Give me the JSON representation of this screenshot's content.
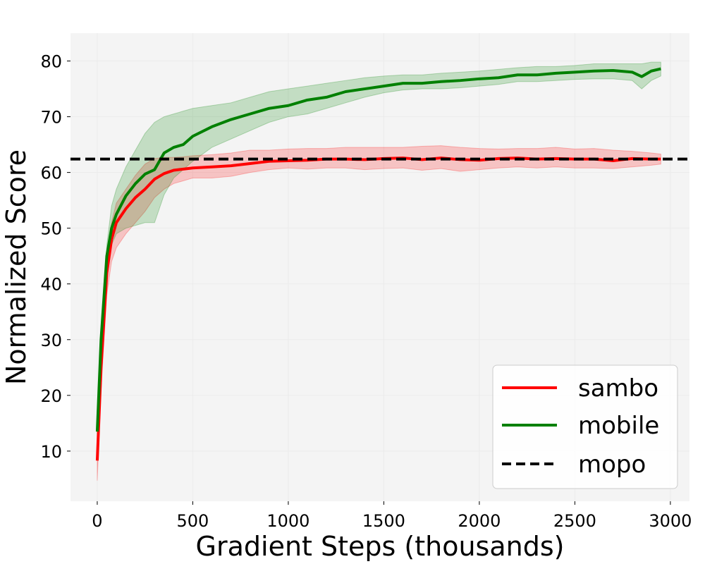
{
  "chart_data": {
    "type": "line",
    "title": "",
    "xlabel": "Gradient Steps (thousands)",
    "ylabel": "Normalized Score",
    "xlim": [
      -140,
      3100
    ],
    "ylim": [
      1,
      85
    ],
    "xticks": [
      0,
      500,
      1000,
      1500,
      2000,
      2500,
      3000
    ],
    "yticks": [
      10,
      20,
      30,
      40,
      50,
      60,
      70,
      80
    ],
    "grid": true,
    "legend_position": "bottom-right",
    "series": [
      {
        "name": "sambo",
        "color": "#ff0000",
        "style": "solid",
        "x": [
          0,
          20,
          50,
          75,
          100,
          150,
          200,
          250,
          300,
          350,
          400,
          450,
          500,
          600,
          700,
          800,
          900,
          1000,
          1100,
          1200,
          1300,
          1400,
          1500,
          1600,
          1700,
          1800,
          1900,
          2000,
          2100,
          2200,
          2300,
          2400,
          2500,
          2600,
          2700,
          2800,
          2900,
          2950
        ],
        "y": [
          8.3,
          25,
          42,
          48,
          51,
          53.5,
          55.5,
          57,
          58.8,
          59.8,
          60.4,
          60.6,
          60.8,
          61,
          61.2,
          61.6,
          62,
          62.1,
          62.2,
          62.4,
          62.4,
          62.3,
          62.5,
          62.6,
          62.3,
          62.6,
          62.3,
          62.2,
          62.5,
          62.6,
          62.4,
          62.5,
          62.4,
          62.4,
          62.1,
          62.5,
          62.4,
          62.4
        ],
        "lower": [
          4.7,
          21,
          38,
          44,
          46.5,
          49,
          51,
          53,
          55.5,
          57,
          58,
          58.5,
          59,
          59,
          59.3,
          60,
          60.5,
          60.8,
          60.6,
          60.8,
          60.8,
          60.5,
          60.7,
          60.8,
          60.4,
          60.7,
          60.2,
          60.5,
          60.8,
          61,
          60.8,
          61,
          60.8,
          60.8,
          60.7,
          61,
          61.3,
          61.5
        ],
        "upper": [
          11.5,
          28,
          45,
          51,
          54.5,
          57,
          59.5,
          61.5,
          62.5,
          62.7,
          62.7,
          62.8,
          63,
          63.2,
          63.5,
          64,
          64,
          64.2,
          64.3,
          64.3,
          64.5,
          64.5,
          64.5,
          64.5,
          64.7,
          64.8,
          64.5,
          64.3,
          64.2,
          64.3,
          64.3,
          64.5,
          64.2,
          64.3,
          64,
          63.8,
          63.5,
          63.3
        ]
      },
      {
        "name": "mobile",
        "color": "#008000",
        "style": "solid",
        "x": [
          0,
          20,
          50,
          75,
          100,
          150,
          200,
          250,
          300,
          350,
          400,
          450,
          500,
          600,
          700,
          800,
          900,
          1000,
          1100,
          1200,
          1300,
          1400,
          1500,
          1600,
          1700,
          1800,
          1900,
          2000,
          2100,
          2200,
          2300,
          2400,
          2500,
          2600,
          2700,
          2800,
          2850,
          2900,
          2950
        ],
        "y": [
          13.5,
          30,
          45,
          50,
          52.5,
          55.8,
          58,
          59.7,
          60.5,
          63.5,
          64.5,
          65,
          66.5,
          68.2,
          69.5,
          70.5,
          71.5,
          72,
          73,
          73.5,
          74.5,
          75,
          75.5,
          76,
          76,
          76.3,
          76.5,
          76.8,
          77,
          77.5,
          77.5,
          77.8,
          78,
          78.2,
          78.3,
          78,
          77.2,
          78.2,
          78.6
        ],
        "lower": [
          13,
          29,
          43,
          47,
          49,
          50,
          50.5,
          51,
          51,
          56,
          59,
          60.5,
          62,
          64.5,
          66,
          67.5,
          69,
          70,
          70.5,
          71.5,
          72.5,
          73.5,
          74.3,
          74.8,
          75,
          75,
          75.2,
          75.5,
          75.8,
          76.3,
          76.3,
          76.5,
          76.7,
          76.8,
          76.8,
          76.5,
          75,
          76.5,
          77.3
        ],
        "upper": [
          14,
          31,
          47,
          54,
          57,
          61,
          64,
          67,
          69,
          70,
          70.5,
          71,
          71.5,
          72,
          72.5,
          73.5,
          74.5,
          75,
          75.5,
          76,
          76.5,
          77,
          77.3,
          77.5,
          77.5,
          77.8,
          78,
          78.2,
          78.5,
          78.8,
          79,
          79,
          79.2,
          79.5,
          79.5,
          79.5,
          79.5,
          79.8,
          79.8
        ]
      },
      {
        "name": "mopo",
        "color": "#000000",
        "style": "dashed",
        "x": [
          -140,
          3100
        ],
        "y": [
          62.4,
          62.4
        ]
      }
    ]
  }
}
